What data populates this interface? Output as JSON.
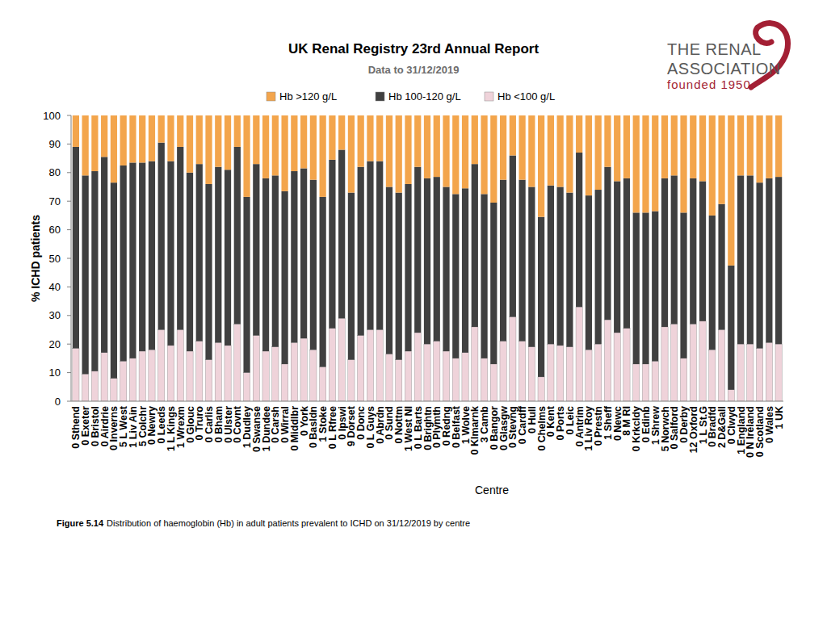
{
  "chart_data": {
    "type": "bar",
    "stacked": true,
    "title": "UK Renal Registry 23rd Annual Report",
    "subtitle": "Data to 31/12/2019",
    "logo": [
      "THE RENAL",
      "ASSOCIATION",
      "founded 1950"
    ],
    "caption_label": "Figure 5.14",
    "caption": "Distribution of haemoglobin (Hb) in adult patients prevalent to ICHD on 31/12/2019 by centre",
    "x_label": "Centre",
    "y_label": "% ICHD patients",
    "ylim": [
      0,
      100
    ],
    "yticks": [
      0,
      10,
      20,
      30,
      40,
      50,
      60,
      70,
      80,
      90,
      100
    ],
    "grid": false,
    "legend": "top",
    "categories": [
      "0 Sthend",
      "0 Exeter",
      "0 Bristol",
      "0 Airdrie",
      "0 Inverns",
      "5 L West",
      "1 Liv Ain",
      "5 Colchr",
      "0 Newry",
      "0 Leeds",
      "1 L Kings",
      "1 Wrexm",
      "0 Glouc",
      "0 Truro",
      "0 Carlis",
      "0 Bham",
      "0 Ulster",
      "0 Covnt",
      "1 Dudley",
      "0 Swanse",
      "1 Dundee",
      "0 Carsh",
      "0 Wirral",
      "0 Middlbr",
      "0 York",
      "0 Basldn",
      "1 Stoke",
      "0 L Rfree",
      "0 Ipswi",
      "9 Dorset",
      "0 Donc",
      "0 L Guys",
      "0 Abrdn",
      "0 Sund",
      "0 Nottm",
      "1 West NI",
      "0 L Barts",
      "0 Brightn",
      "0 Plymth",
      "0 Redng",
      "0 Belfast",
      "1 Wolve",
      "0 Klmarnk",
      "3 Camb",
      "0 Bangor",
      "0 Glasgw",
      "0 Stevng",
      "0 Cardff",
      "0 Hull",
      "0 Chelms",
      "0 Kent",
      "0 Ports",
      "0 Leic",
      "0 Antrim",
      "1 Liv Roy",
      "0 Prestn",
      "1 Sheff",
      "0 Newc",
      "8 M RI",
      "0 Krkcldy",
      "0 Edinb",
      "1 Shrew",
      "5 Norwch",
      "0 Salford",
      "0 Derby",
      "12 Oxford",
      "1 L St.G",
      "0 Bradfd",
      "2 D&Gall",
      "0 Clwyd",
      "1 England",
      "0 N Ireland",
      "0 Scotland",
      "0 Wales",
      "1 UK"
    ],
    "series": [
      {
        "name": "Hb <100 g/L",
        "color": "#efd3da",
        "values": [
          18.5,
          9.5,
          10.5,
          17,
          8,
          14,
          15,
          17.5,
          18,
          25,
          19.5,
          25,
          17.5,
          21,
          14.5,
          20.5,
          19.5,
          27,
          10,
          23,
          17.5,
          19,
          13,
          20.5,
          22,
          18,
          12,
          25.5,
          29,
          14.5,
          23,
          25,
          25,
          16.5,
          14.5,
          17.5,
          24,
          20,
          21,
          17.5,
          15,
          17,
          26,
          15,
          13,
          21,
          29.5,
          21,
          19,
          8.5,
          20,
          19.5,
          19,
          33,
          18,
          20,
          28.5,
          24,
          25.5,
          13,
          13,
          14,
          26,
          27,
          15,
          27,
          28,
          18,
          25,
          4,
          20,
          20,
          18.5,
          20.5,
          20
        ]
      },
      {
        "name": "Hb 100-120 g/L",
        "color": "#404040",
        "values": [
          70.5,
          69.5,
          70,
          68.5,
          68.5,
          68.5,
          68.5,
          66,
          66,
          65.5,
          64.5,
          64,
          62.5,
          62,
          61.5,
          61.5,
          61.5,
          62,
          61.5,
          60,
          60.5,
          60,
          60.5,
          60,
          59.5,
          59.5,
          59.5,
          59,
          59,
          58.5,
          59,
          59,
          59,
          58.5,
          58.5,
          58.5,
          58,
          58,
          57.5,
          57.5,
          57.5,
          57.5,
          57,
          57.5,
          56.5,
          56.5,
          56.5,
          56.5,
          56,
          56,
          55.5,
          55.5,
          54,
          54,
          54,
          54,
          53.5,
          53,
          52.5,
          53,
          53,
          52.5,
          52,
          52,
          51,
          51,
          49,
          47,
          44,
          43.5,
          59,
          59,
          58,
          57.5,
          58.5
        ]
      },
      {
        "name": "Hb >120 g/L",
        "color": "#f3a54c",
        "values": [
          11,
          21,
          19.5,
          14.5,
          23.5,
          17.5,
          16.5,
          16.5,
          16,
          9.5,
          16,
          11,
          20,
          17,
          24,
          18,
          19,
          11,
          28.5,
          17,
          22,
          21,
          26.5,
          19.5,
          18.5,
          22.5,
          28.5,
          15.5,
          12,
          27,
          18,
          16,
          16,
          25,
          27,
          24,
          18,
          22,
          21.5,
          25,
          27.5,
          25.5,
          17,
          27.5,
          30.5,
          22.5,
          14,
          22.5,
          25,
          35.5,
          24.5,
          25,
          27,
          13,
          28,
          26,
          18,
          23,
          22,
          34,
          34,
          33.5,
          22,
          21,
          34,
          22,
          23,
          35,
          31,
          52.5,
          21,
          21,
          23.5,
          22,
          21.5
        ]
      }
    ]
  }
}
